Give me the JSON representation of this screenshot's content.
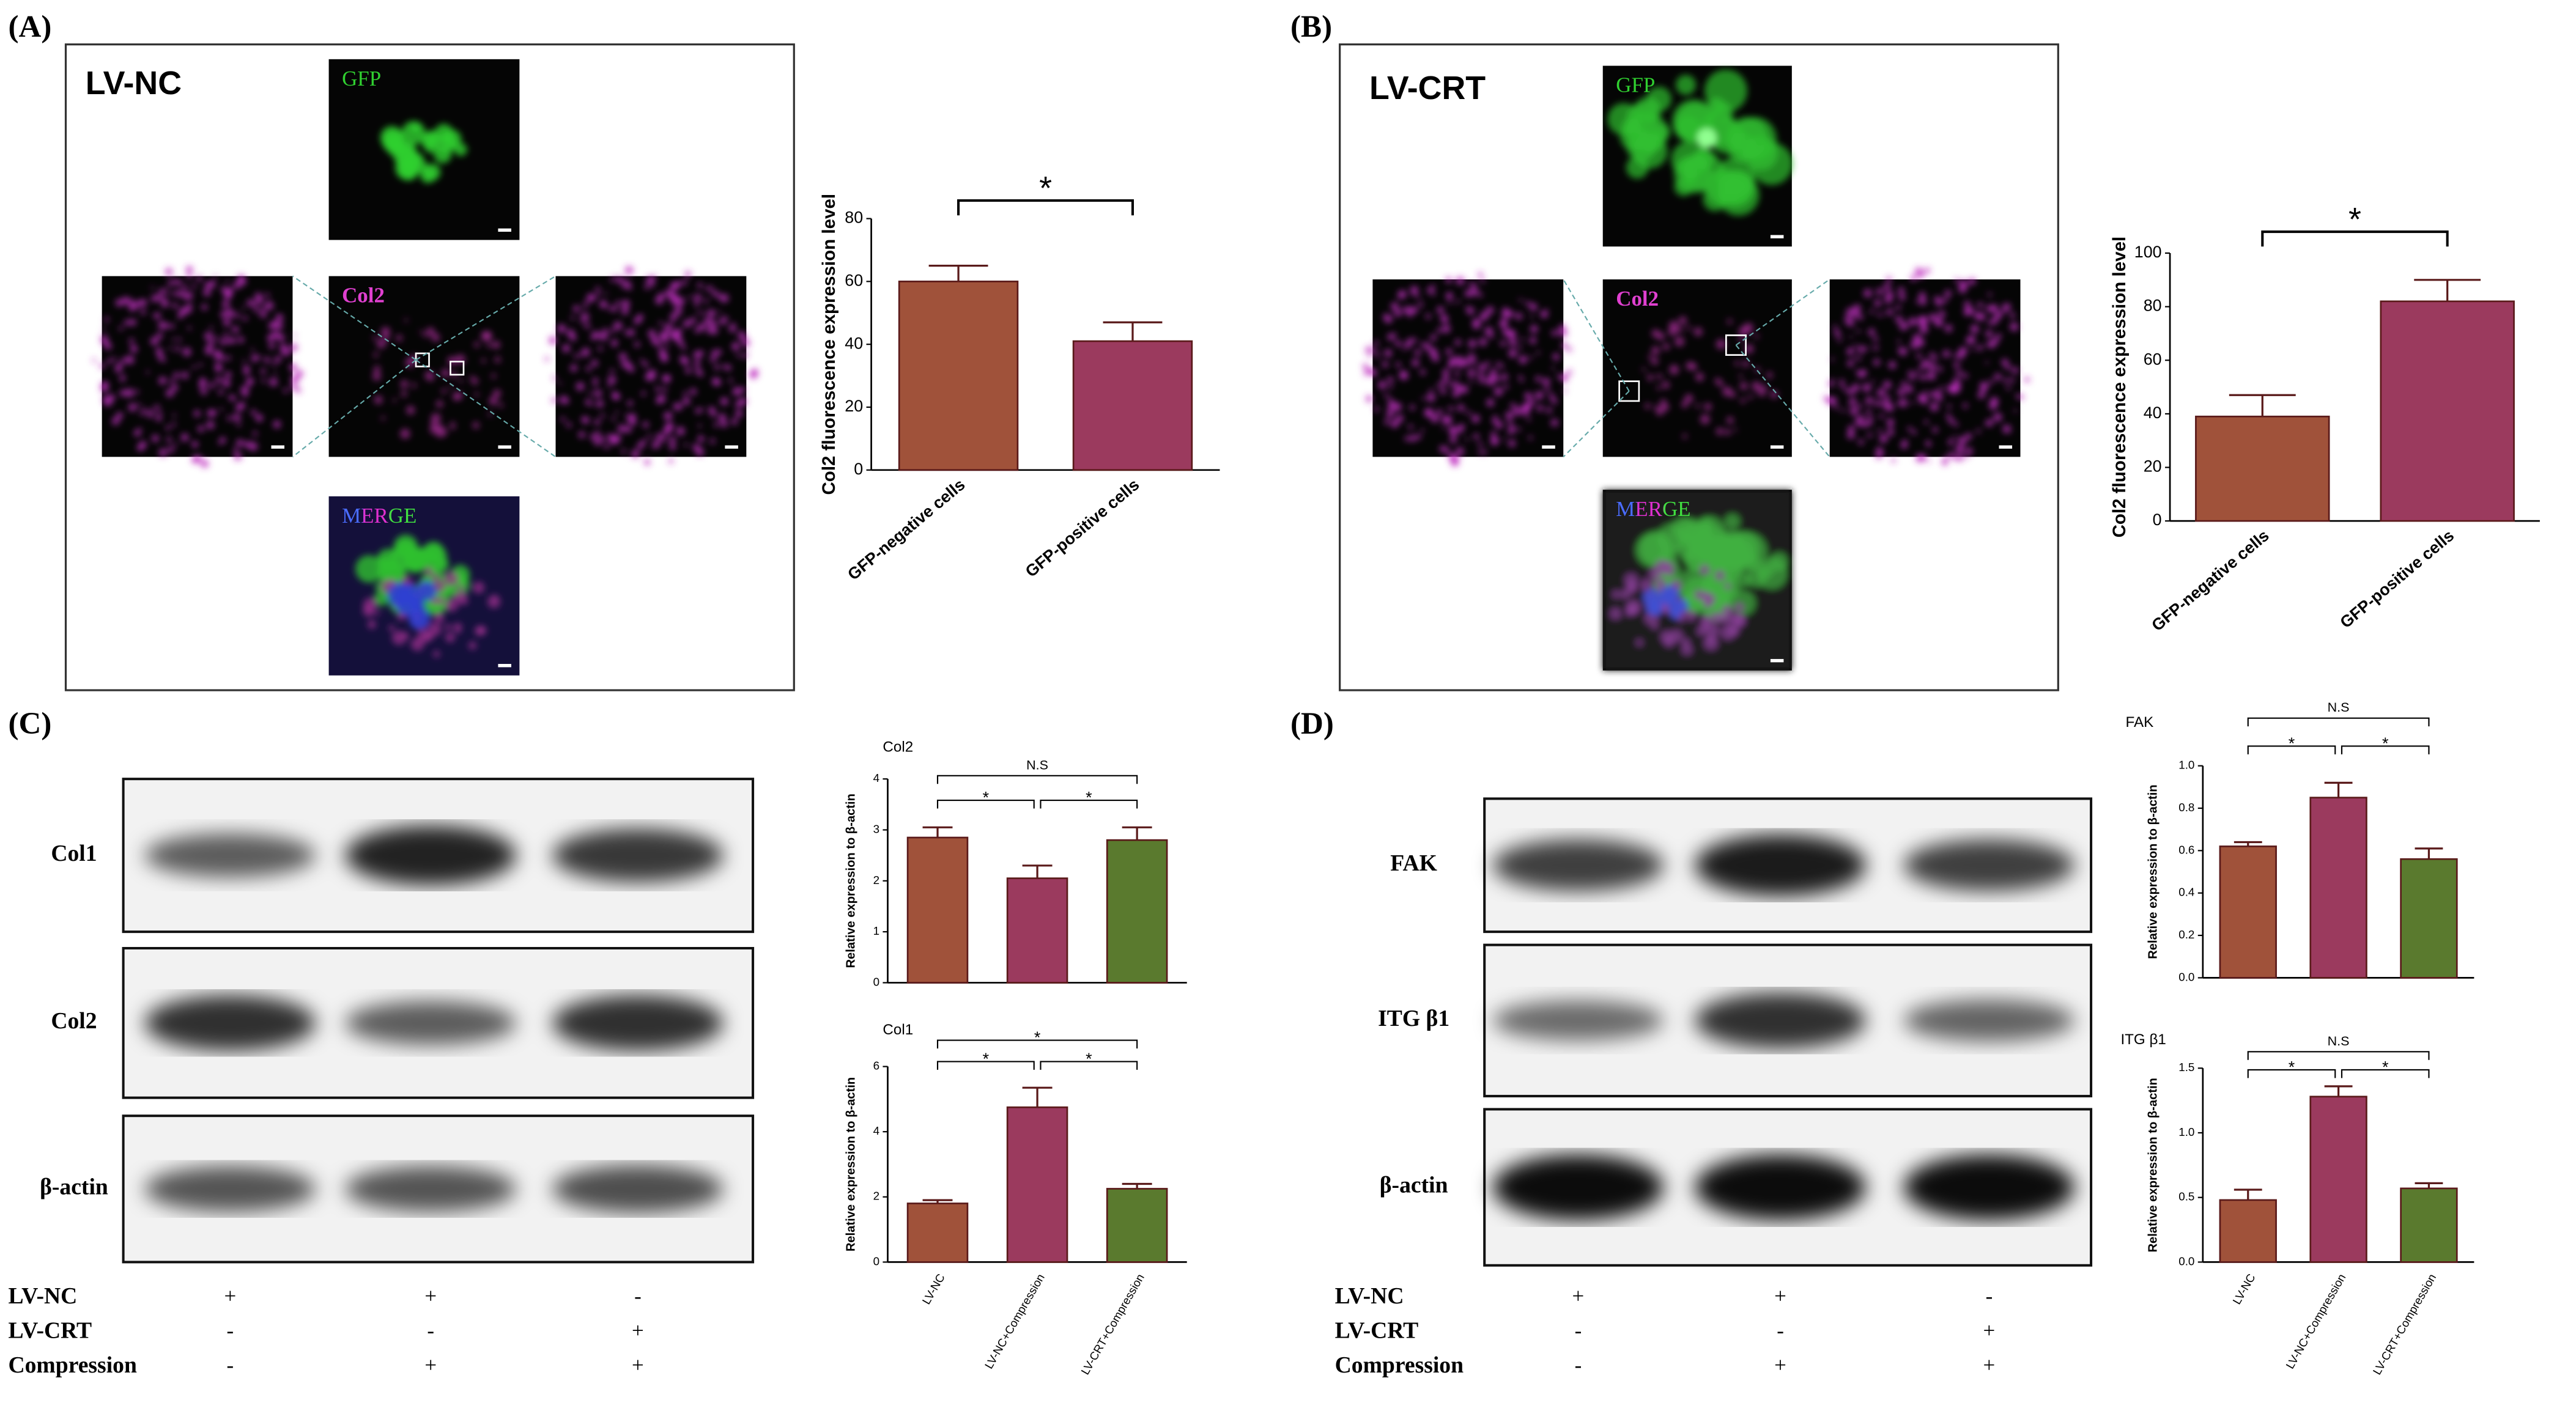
{
  "panels": [
    {
      "label": "(A)",
      "group": "LV-NC",
      "images": [
        "GFP",
        "Col2",
        "MERGE"
      ]
    },
    {
      "label": "(B)",
      "group": "LV-CRT",
      "images": [
        "GFP",
        "Col2",
        "MERGE"
      ]
    },
    {
      "label": "(C)",
      "blots": [
        "Col1",
        "Col2",
        "β-actin"
      ],
      "conditions": [
        {
          "name": "LV-NC",
          "signs": [
            "+",
            "+",
            "-"
          ]
        },
        {
          "name": "LV-CRT",
          "signs": [
            "-",
            "-",
            "+"
          ]
        },
        {
          "name": "Compression",
          "signs": [
            "-",
            "+",
            "+"
          ]
        }
      ]
    },
    {
      "label": "(D)",
      "blots": [
        "FAK",
        "ITG β1",
        "β-actin"
      ],
      "conditions": [
        {
          "name": "LV-NC",
          "signs": [
            "+",
            "+",
            "-"
          ]
        },
        {
          "name": "LV-CRT",
          "signs": [
            "-",
            "-",
            "+"
          ]
        },
        {
          "name": "Compression",
          "signs": [
            "-",
            "+",
            "+"
          ]
        }
      ]
    }
  ],
  "chart_data": [
    {
      "type": "bar",
      "ylabel": "Col2 fluorescence expression level",
      "categories": [
        "GFP-negative cells",
        "GFP-positive cells"
      ],
      "values": [
        60,
        41
      ],
      "errors": [
        5,
        6
      ],
      "colors": [
        "#a0523a",
        "#9b3a5e"
      ],
      "ylim": [
        0,
        80
      ],
      "yticks": [
        0,
        20,
        40,
        60,
        80
      ],
      "annotations": [
        "*"
      ]
    },
    {
      "type": "bar",
      "ylabel": "Col2 fluorescence expression level",
      "categories": [
        "GFP-negative cells",
        "GFP-positive cells"
      ],
      "values": [
        39,
        82
      ],
      "errors": [
        8,
        8
      ],
      "colors": [
        "#a0523a",
        "#9b3a5e"
      ],
      "ylim": [
        0,
        100
      ],
      "yticks": [
        0,
        20,
        40,
        60,
        80,
        100
      ],
      "annotations": [
        "*"
      ]
    },
    {
      "type": "bar",
      "title": "Col2",
      "ylabel": "Relative expression to β-actin",
      "categories": [
        null,
        null,
        null
      ],
      "values": [
        2.85,
        2.05,
        2.8
      ],
      "errors": [
        0.2,
        0.25,
        0.25
      ],
      "colors": [
        "#a0523a",
        "#9b3a5e",
        "#5a7a2e"
      ],
      "ylim": [
        0,
        4
      ],
      "yticks": [
        0,
        1,
        2,
        3,
        4
      ],
      "annotations": [
        "N.S",
        "*",
        "*"
      ]
    },
    {
      "type": "bar",
      "title": "Col1",
      "ylabel": "Relative expression to β-actin",
      "categories": [
        "LV-NC",
        "LV-NC+Compression",
        "LV-CRT+Compression"
      ],
      "values": [
        1.8,
        4.75,
        2.25
      ],
      "errors": [
        0.1,
        0.6,
        0.15
      ],
      "colors": [
        "#a0523a",
        "#9b3a5e",
        "#5a7a2e"
      ],
      "ylim": [
        0,
        6
      ],
      "yticks": [
        0,
        2,
        4,
        6
      ],
      "annotations": [
        "*",
        "*",
        "*"
      ]
    },
    {
      "type": "bar",
      "title": "FAK",
      "ylabel": "Relative expression to β-actin",
      "categories": [
        null,
        null,
        null
      ],
      "values": [
        0.62,
        0.85,
        0.56
      ],
      "errors": [
        0.02,
        0.07,
        0.05
      ],
      "colors": [
        "#a0523a",
        "#9b3a5e",
        "#5a7a2e"
      ],
      "ylim": [
        0,
        1
      ],
      "yticks": [
        {
          "value": 0,
          "label": "0.0"
        },
        0.2,
        0.4,
        0.6,
        0.8,
        {
          "value": 1,
          "label": "1.0"
        }
      ],
      "annotations": [
        "N.S",
        "*",
        "*"
      ]
    },
    {
      "type": "bar",
      "title": "ITG β1",
      "ylabel": "Relative expression to β-actin",
      "categories": [
        "LV-NC",
        "LV-NC+Compression",
        "LV-CRT+Compression"
      ],
      "values": [
        0.48,
        1.28,
        0.57
      ],
      "errors": [
        0.08,
        0.08,
        0.04
      ],
      "colors": [
        "#a0523a",
        "#9b3a5e",
        "#5a7a2e"
      ],
      "ylim": [
        0,
        1.5
      ],
      "yticks": [
        {
          "value": 0,
          "label": "0.0"
        },
        0.5,
        {
          "value": 1,
          "label": "1.0"
        },
        1.5
      ],
      "annotations": [
        "N.S",
        "*",
        "*"
      ]
    }
  ]
}
